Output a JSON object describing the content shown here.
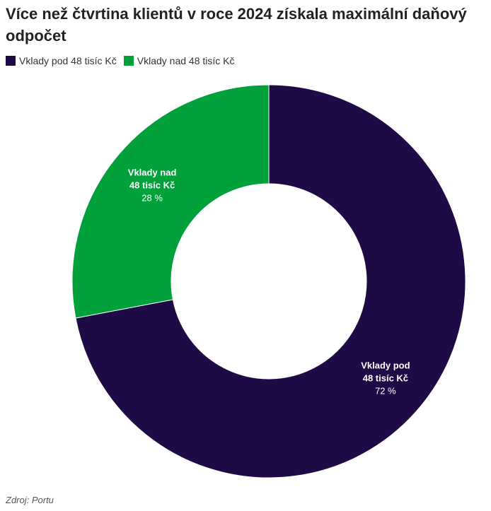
{
  "title": "Více než čtvrtina klientů v roce 2024 získala maximální daňový odpočet",
  "source": "Zdroj: Portu",
  "chart_data": {
    "type": "pie",
    "variant": "donut",
    "title": "Více než čtvrtina klientů v roce 2024 získala maximální daňový odpočet",
    "legend_placement": "top-left",
    "slices": [
      {
        "name": "Vklady pod 48 tisíc Kč",
        "label_lines": [
          "Vklady pod",
          "48 tisíc Kč"
        ],
        "value": 72,
        "value_label": "72 %",
        "color": "#1e0b45"
      },
      {
        "name": "Vklady nad 48 tisíc Kč",
        "label_lines": [
          "Vklady nad",
          "48 tisíc Kč"
        ],
        "value": 28,
        "value_label": "28 %",
        "color": "#00a13a"
      }
    ]
  }
}
